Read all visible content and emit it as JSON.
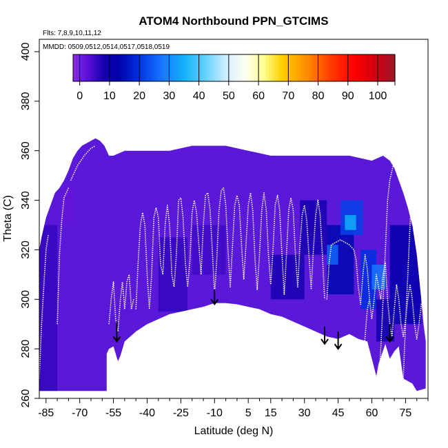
{
  "chart_data": {
    "type": "heatmap",
    "title": "ATOM4 Northbound PPN_GTCIMS",
    "annotations": {
      "flights": "Flts: 7,8,9,10,11,12",
      "dates": "MMDD: 0509,0512,0514,0517,0518,0519"
    },
    "xlabel": "Latitude (deg N)",
    "ylabel": "Theta (C)",
    "xlim": [
      -88,
      85
    ],
    "ylim": [
      260,
      405
    ],
    "x_ticks": [
      -85,
      -70,
      -55,
      -40,
      -25,
      -10,
      5,
      15,
      30,
      45,
      60,
      75
    ],
    "x_tick_labels": [
      "-85",
      "-70",
      "-55",
      "-40",
      "-25",
      "-10",
      "5",
      "15",
      "30",
      "45",
      "60",
      "75"
    ],
    "x_minor_ticks": [
      -80,
      -75,
      -65,
      -60,
      -50,
      -45,
      -35,
      -30,
      -20,
      -15,
      -5,
      0,
      10,
      20,
      25,
      35,
      40,
      50,
      55,
      65,
      70,
      80,
      85
    ],
    "y_ticks": [
      260,
      280,
      300,
      320,
      340,
      360,
      380,
      400
    ],
    "y_tick_labels": [
      "260",
      "280",
      "300",
      "320",
      "340",
      "360",
      "380",
      "400"
    ],
    "grid": false,
    "colorbar": {
      "position": "top",
      "range": [
        -2,
        106
      ],
      "ticks": [
        0,
        10,
        20,
        30,
        40,
        50,
        60,
        70,
        80,
        90,
        100
      ],
      "tick_labels": [
        "0",
        "10",
        "20",
        "30",
        "40",
        "50",
        "60",
        "70",
        "80",
        "90",
        "100"
      ],
      "stops": [
        {
          "v": -2,
          "color": "#8a2be2"
        },
        {
          "v": 3,
          "color": "#5a10d8"
        },
        {
          "v": 8,
          "color": "#1a00b0"
        },
        {
          "v": 13,
          "color": "#0000a8"
        },
        {
          "v": 20,
          "color": "#0030e0"
        },
        {
          "v": 28,
          "color": "#1878ff"
        },
        {
          "v": 35,
          "color": "#10b0f8"
        },
        {
          "v": 42,
          "color": "#60d0ff"
        },
        {
          "v": 50,
          "color": "#d8f0ff"
        },
        {
          "v": 56,
          "color": "#fffff0"
        },
        {
          "v": 62,
          "color": "#ffff90"
        },
        {
          "v": 68,
          "color": "#ffd000"
        },
        {
          "v": 76,
          "color": "#ff9000"
        },
        {
          "v": 84,
          "color": "#ff4000"
        },
        {
          "v": 92,
          "color": "#ff0000"
        },
        {
          "v": 100,
          "color": "#d00010"
        },
        {
          "v": 106,
          "color": "#9a1a2a"
        }
      ]
    },
    "field_color": "#5a18d8",
    "data_boundary": [
      [
        -88,
        263
      ],
      [
        -88,
        320
      ],
      [
        -87,
        325
      ],
      [
        -85,
        333
      ],
      [
        -83,
        338
      ],
      [
        -81,
        343
      ],
      [
        -79,
        345
      ],
      [
        -77,
        348
      ],
      [
        -75,
        352
      ],
      [
        -73,
        357
      ],
      [
        -71,
        360
      ],
      [
        -69,
        362
      ],
      [
        -67,
        363
      ],
      [
        -65,
        364
      ],
      [
        -63,
        365
      ],
      [
        -61,
        364
      ],
      [
        -59,
        362
      ],
      [
        -57,
        358
      ],
      [
        -55,
        358
      ],
      [
        -50,
        360
      ],
      [
        -45,
        360
      ],
      [
        -40,
        360
      ],
      [
        -35,
        360
      ],
      [
        -30,
        360
      ],
      [
        -25,
        361
      ],
      [
        -20,
        362
      ],
      [
        -15,
        362
      ],
      [
        -10,
        362
      ],
      [
        -5,
        362
      ],
      [
        0,
        361
      ],
      [
        5,
        360
      ],
      [
        10,
        359
      ],
      [
        15,
        358
      ],
      [
        20,
        358
      ],
      [
        25,
        358
      ],
      [
        30,
        358
      ],
      [
        35,
        358
      ],
      [
        40,
        358
      ],
      [
        45,
        358
      ],
      [
        50,
        358
      ],
      [
        55,
        357
      ],
      [
        60,
        356
      ],
      [
        65,
        358
      ],
      [
        68,
        356
      ],
      [
        70,
        353
      ],
      [
        72,
        348
      ],
      [
        74,
        343
      ],
      [
        76,
        337
      ],
      [
        78,
        330
      ],
      [
        80,
        318
      ],
      [
        82,
        300
      ],
      [
        83,
        290
      ],
      [
        84,
        283
      ],
      [
        84,
        264
      ],
      [
        80,
        263
      ],
      [
        78,
        266
      ],
      [
        74,
        268
      ],
      [
        72,
        281
      ],
      [
        70,
        279
      ],
      [
        68,
        276
      ],
      [
        66,
        282
      ],
      [
        63,
        274
      ],
      [
        62,
        269
      ],
      [
        60,
        276
      ],
      [
        58,
        283
      ],
      [
        54,
        284
      ],
      [
        50,
        286
      ],
      [
        45,
        284
      ],
      [
        40,
        285
      ],
      [
        35,
        287
      ],
      [
        30,
        289
      ],
      [
        25,
        291
      ],
      [
        20,
        293
      ],
      [
        15,
        294
      ],
      [
        10,
        296
      ],
      [
        5,
        297
      ],
      [
        0,
        298
      ],
      [
        -5,
        298.5
      ],
      [
        -10,
        298.5
      ],
      [
        -15,
        297
      ],
      [
        -20,
        296
      ],
      [
        -25,
        295
      ],
      [
        -30,
        294
      ],
      [
        -35,
        292
      ],
      [
        -40,
        290
      ],
      [
        -45,
        287
      ],
      [
        -50,
        283
      ],
      [
        -52,
        277
      ],
      [
        -53,
        275
      ],
      [
        -55,
        281
      ],
      [
        -57,
        280
      ],
      [
        -58,
        278
      ],
      [
        -58,
        263
      ]
    ],
    "patches": [
      {
        "x": [
          -88,
          -80
        ],
        "y": [
          263,
          330
        ],
        "value": 6
      },
      {
        "x": [
          -78,
          -72
        ],
        "y": [
          330,
          345
        ],
        "value": 2
      },
      {
        "x": [
          -35,
          -22
        ],
        "y": [
          295,
          325
        ],
        "value": 6
      },
      {
        "x": [
          -20,
          -5
        ],
        "y": [
          310,
          330
        ],
        "value": 5
      },
      {
        "x": [
          15,
          30
        ],
        "y": [
          300,
          318
        ],
        "value": 8
      },
      {
        "x": [
          28,
          40
        ],
        "y": [
          318,
          340
        ],
        "value": 9
      },
      {
        "x": [
          40,
          52
        ],
        "y": [
          302,
          330
        ],
        "value": 14
      },
      {
        "x": [
          40,
          45
        ],
        "y": [
          314,
          322
        ],
        "value": 26
      },
      {
        "x": [
          46,
          56
        ],
        "y": [
          326,
          340
        ],
        "value": 22
      },
      {
        "x": [
          48,
          53
        ],
        "y": [
          328,
          334
        ],
        "value": 35
      },
      {
        "x": [
          55,
          62
        ],
        "y": [
          296,
          320
        ],
        "value": 20
      },
      {
        "x": [
          60,
          66
        ],
        "y": [
          304,
          314
        ],
        "value": 28
      },
      {
        "x": [
          68,
          82
        ],
        "y": [
          290,
          330
        ],
        "value": 12
      },
      {
        "x": [
          62,
          70
        ],
        "y": [
          283,
          300
        ],
        "value": 10
      }
    ],
    "flight_tracks": [
      [
        [
          -88,
          268
        ],
        [
          -87,
          290
        ],
        [
          -86,
          305
        ],
        [
          -85,
          320
        ],
        [
          -84,
          326
        ]
      ],
      [
        [
          -80,
          290
        ],
        [
          -79,
          318
        ],
        [
          -78,
          332
        ],
        [
          -77,
          341
        ],
        [
          -76,
          343
        ],
        [
          -75,
          345
        ]
      ],
      [
        [
          -74,
          348
        ],
        [
          -71,
          354
        ],
        [
          -68,
          358
        ],
        [
          -65,
          361
        ],
        [
          -63,
          362
        ]
      ],
      [
        [
          -57,
          290
        ],
        [
          -56,
          300
        ],
        [
          -55,
          307
        ],
        [
          -54,
          292
        ],
        [
          -53,
          287
        ],
        [
          -52,
          299
        ],
        [
          -51,
          307
        ],
        [
          -50,
          296
        ],
        [
          -49,
          307
        ],
        [
          -48,
          310
        ],
        [
          -47,
          296
        ],
        [
          -46,
          300
        ]
      ],
      [
        [
          -45,
          296
        ],
        [
          -44,
          315
        ],
        [
          -43,
          330
        ],
        [
          -42,
          335
        ],
        [
          -41,
          330
        ],
        [
          -40,
          310
        ],
        [
          -39,
          296
        ],
        [
          -38,
          310
        ],
        [
          -37,
          333
        ],
        [
          -36,
          337
        ],
        [
          -35,
          333
        ],
        [
          -34,
          314
        ],
        [
          -33,
          310
        ],
        [
          -32,
          330
        ],
        [
          -31,
          338
        ],
        [
          -30,
          330
        ],
        [
          -29,
          310
        ],
        [
          -28,
          305
        ],
        [
          -27,
          318
        ],
        [
          -26,
          340
        ],
        [
          -25,
          341
        ],
        [
          -24,
          333
        ],
        [
          -23,
          315
        ],
        [
          -22,
          305
        ],
        [
          -21,
          315
        ],
        [
          -20,
          335
        ],
        [
          -19,
          340
        ],
        [
          -18,
          335
        ],
        [
          -17,
          322
        ],
        [
          -16,
          310
        ],
        [
          -15,
          330
        ],
        [
          -14,
          342
        ],
        [
          -13,
          343
        ],
        [
          -12,
          336
        ],
        [
          -11,
          320
        ],
        [
          -10,
          302
        ],
        [
          -9,
          316
        ],
        [
          -8,
          336
        ],
        [
          -7,
          344
        ],
        [
          -6,
          345
        ],
        [
          -5,
          338
        ],
        [
          -4,
          320
        ],
        [
          -3,
          305
        ],
        [
          -2,
          322
        ],
        [
          -1,
          338
        ],
        [
          0,
          342
        ],
        [
          1,
          338
        ],
        [
          2,
          322
        ],
        [
          3,
          308
        ],
        [
          4,
          322
        ],
        [
          5,
          338
        ],
        [
          6,
          343
        ],
        [
          7,
          336
        ],
        [
          8,
          316
        ],
        [
          9,
          304
        ],
        [
          10,
          318
        ],
        [
          11,
          336
        ],
        [
          12,
          343
        ],
        [
          13,
          336
        ],
        [
          14,
          318
        ],
        [
          15,
          306
        ],
        [
          16,
          320
        ],
        [
          17,
          338
        ],
        [
          18,
          342
        ],
        [
          19,
          336
        ],
        [
          20,
          318
        ],
        [
          21,
          302
        ],
        [
          22,
          318
        ],
        [
          23,
          336
        ],
        [
          24,
          341
        ],
        [
          25,
          336
        ],
        [
          26,
          318
        ],
        [
          27,
          305
        ],
        [
          28,
          322
        ],
        [
          29,
          334
        ],
        [
          30,
          338
        ],
        [
          31,
          332
        ],
        [
          32,
          318
        ],
        [
          33,
          304
        ],
        [
          34,
          320
        ],
        [
          35,
          334
        ],
        [
          36,
          340
        ],
        [
          37,
          334
        ],
        [
          38,
          318
        ],
        [
          39,
          300
        ]
      ],
      [
        [
          40,
          300
        ],
        [
          41,
          315
        ],
        [
          42,
          322
        ],
        [
          44,
          323
        ],
        [
          46,
          324
        ],
        [
          48,
          323
        ],
        [
          50,
          322
        ],
        [
          52,
          320
        ],
        [
          53,
          316
        ],
        [
          54,
          305
        ],
        [
          55,
          298
        ],
        [
          56,
          310
        ],
        [
          57,
          318
        ],
        [
          58,
          312
        ],
        [
          59,
          300
        ],
        [
          60,
          292
        ],
        [
          61,
          300
        ],
        [
          62,
          310
        ],
        [
          63,
          305
        ],
        [
          64,
          300
        ],
        [
          65,
          310
        ],
        [
          66,
          315
        ],
        [
          67,
          300
        ],
        [
          68,
          290
        ],
        [
          69,
          285
        ],
        [
          70,
          296
        ],
        [
          71,
          306
        ],
        [
          72,
          300
        ],
        [
          73,
          290
        ],
        [
          74,
          285
        ],
        [
          75,
          292
        ],
        [
          76,
          300
        ],
        [
          77,
          306
        ],
        [
          78,
          300
        ],
        [
          79,
          290
        ],
        [
          80,
          284
        ],
        [
          81,
          290
        ],
        [
          82,
          298
        ],
        [
          83,
          300
        ],
        [
          84,
          295
        ]
      ],
      [
        [
          55,
          264
        ],
        [
          56,
          275
        ],
        [
          57,
          285
        ],
        [
          58,
          296
        ],
        [
          59,
          300
        ]
      ],
      [
        [
          63,
          266
        ],
        [
          64,
          280
        ],
        [
          65,
          300
        ],
        [
          66,
          320
        ],
        [
          67,
          340
        ],
        [
          68,
          348
        ],
        [
          69,
          352
        ],
        [
          70,
          356
        ],
        [
          71,
          357
        ],
        [
          72,
          355
        ]
      ],
      [
        [
          74,
          268
        ],
        [
          75,
          290
        ],
        [
          76,
          310
        ],
        [
          77,
          330
        ],
        [
          78,
          345
        ],
        [
          79,
          352
        ],
        [
          80,
          348
        ]
      ]
    ],
    "arrows": [
      {
        "x": -53.5,
        "y_start": 291,
        "y_end": 283
      },
      {
        "x": -10,
        "y_start": 304,
        "y_end": 298
      },
      {
        "x": 39,
        "y_start": 289,
        "y_end": 282
      },
      {
        "x": 45,
        "y_start": 287,
        "y_end": 280
      },
      {
        "x": 68,
        "y_start": 290,
        "y_end": 283
      }
    ]
  }
}
